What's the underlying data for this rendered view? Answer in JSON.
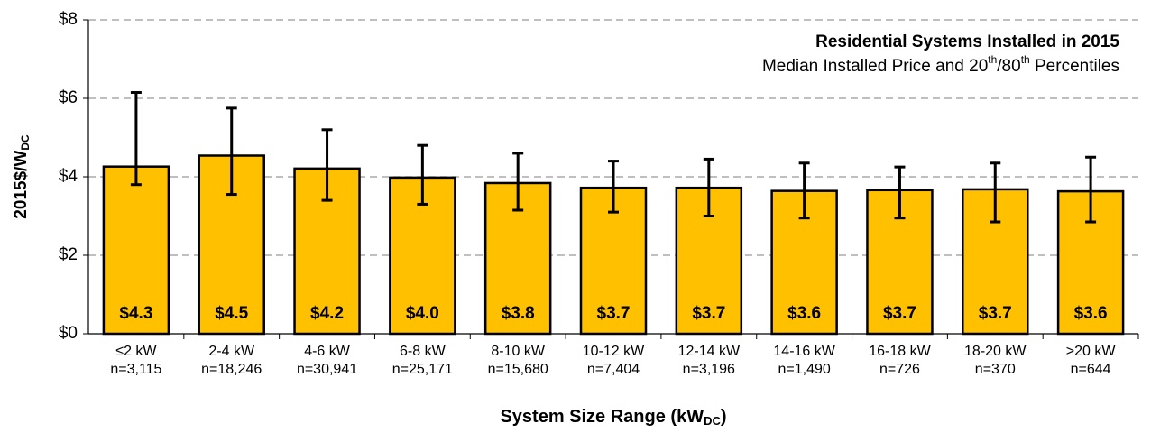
{
  "chart_data": {
    "type": "bar",
    "title": "Residential Systems Installed in 2015",
    "subtitle_parts": [
      "Median Installed Price and 20",
      "th",
      "/80",
      "th",
      " Percentiles"
    ],
    "y_label_parts": [
      "2015$/W",
      "DC"
    ],
    "x_label_parts": [
      "System Size Range (kW",
      "DC",
      ")"
    ],
    "categories": [
      "≤2 kW",
      "2-4 kW",
      "4-6 kW",
      "6-8 kW",
      "8-10 kW",
      "10-12 kW",
      "12-14 kW",
      "14-16 kW",
      "16-18 kW",
      "18-20 kW",
      ">20 kW"
    ],
    "sample_sizes": [
      "n=3,115",
      "n=18,246",
      "n=30,941",
      "n=25,171",
      "n=15,680",
      "n=7,404",
      "n=3,196",
      "n=1,490",
      "n=726",
      "n=370",
      "n=644"
    ],
    "series": [
      {
        "name": "Median Installed Price",
        "color": "#FFC000",
        "values": [
          4.26,
          4.54,
          4.21,
          3.98,
          3.84,
          3.72,
          3.72,
          3.64,
          3.66,
          3.68,
          3.63
        ],
        "value_labels": [
          "$4.3",
          "$4.5",
          "$4.2",
          "$4.0",
          "$3.8",
          "$3.7",
          "$3.7",
          "$3.6",
          "$3.7",
          "$3.7",
          "$3.6"
        ],
        "p20": [
          3.8,
          3.55,
          3.4,
          3.3,
          3.15,
          3.1,
          3.0,
          2.95,
          2.95,
          2.85,
          2.85
        ],
        "p80": [
          6.15,
          5.75,
          5.2,
          4.8,
          4.6,
          4.4,
          4.45,
          4.35,
          4.25,
          4.35,
          4.5
        ]
      }
    ],
    "ylim": [
      0,
      8
    ],
    "yticks": [
      {
        "value": 0,
        "label": "$0"
      },
      {
        "value": 2,
        "label": "$2"
      },
      {
        "value": 4,
        "label": "$4"
      },
      {
        "value": 6,
        "label": "$6"
      },
      {
        "value": 8,
        "label": "$8"
      }
    ],
    "grid": true
  }
}
